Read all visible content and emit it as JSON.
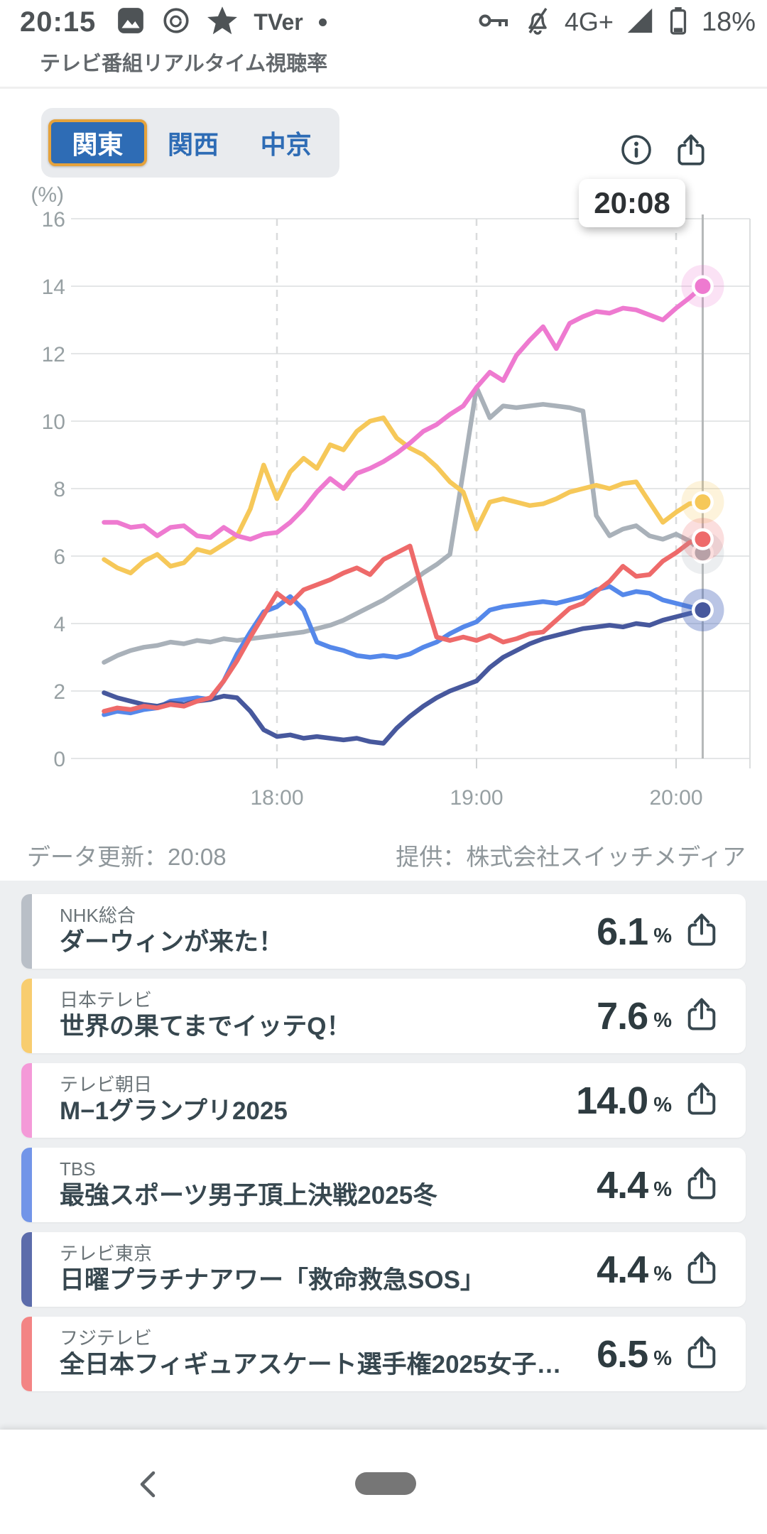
{
  "status_bar": {
    "time": "20:15",
    "tver_label": "TVer",
    "network": "4G+",
    "battery_percent": "18%",
    "left_icon_names": [
      "photo-icon",
      "threads-icon",
      "star-icon",
      "tver-icon",
      "notification-dot-icon"
    ],
    "right_icon_names": [
      "key-icon",
      "bell-off-icon",
      "signal-icon",
      "battery-icon"
    ]
  },
  "header": {
    "app_title": "テレビ番組リアルタイム視聴率"
  },
  "region_tabs": [
    {
      "label": "関東",
      "active": true
    },
    {
      "label": "関西",
      "active": false
    },
    {
      "label": "中京",
      "active": false
    }
  ],
  "tooltip": {
    "time": "20:08"
  },
  "chart_data": {
    "type": "line",
    "title": "",
    "unit_label": "(%)",
    "ylabel": "%",
    "ylim": [
      0,
      16
    ],
    "ytick_step": 2,
    "grid": true,
    "x_ticks": [
      "18:00",
      "19:00",
      "20:00"
    ],
    "x_start": "17:08",
    "x_step_min": 4,
    "cursor_time": "20:08",
    "series": [
      {
        "id": "nhk",
        "name": "NHK総合",
        "color": "#a9b1b9",
        "values": [
          2.85,
          3.05,
          3.2,
          3.3,
          3.35,
          3.45,
          3.4,
          3.5,
          3.45,
          3.55,
          3.5,
          3.55,
          3.6,
          3.65,
          3.7,
          3.75,
          3.85,
          3.95,
          4.1,
          4.3,
          4.5,
          4.7,
          4.95,
          5.2,
          5.5,
          5.75,
          6.05,
          8.5,
          11.0,
          10.1,
          10.45,
          10.4,
          10.45,
          10.5,
          10.45,
          10.4,
          10.3,
          7.2,
          6.6,
          6.8,
          6.9,
          6.6,
          6.5,
          6.65,
          6.45,
          6.1
        ]
      },
      {
        "id": "ntv",
        "name": "日本テレビ",
        "color": "#f6c859",
        "values": [
          5.9,
          5.65,
          5.5,
          5.85,
          6.05,
          5.7,
          5.8,
          6.2,
          6.1,
          6.35,
          6.6,
          7.4,
          8.7,
          7.7,
          8.5,
          8.9,
          8.6,
          9.3,
          9.15,
          9.7,
          10.0,
          10.1,
          9.5,
          9.2,
          9.0,
          8.65,
          8.2,
          7.9,
          6.8,
          7.6,
          7.7,
          7.6,
          7.5,
          7.55,
          7.7,
          7.9,
          8.0,
          8.1,
          8.0,
          8.15,
          8.2,
          7.6,
          7.0,
          7.3,
          7.55,
          7.6
        ]
      },
      {
        "id": "tbs",
        "name": "TBS",
        "color": "#5588ea",
        "values": [
          1.3,
          1.4,
          1.35,
          1.45,
          1.5,
          1.7,
          1.75,
          1.8,
          1.75,
          2.3,
          3.1,
          3.75,
          4.35,
          4.5,
          4.8,
          4.4,
          3.45,
          3.3,
          3.2,
          3.05,
          3.0,
          3.05,
          3.0,
          3.1,
          3.3,
          3.45,
          3.7,
          3.9,
          4.05,
          4.4,
          4.5,
          4.55,
          4.6,
          4.65,
          4.6,
          4.7,
          4.8,
          5.0,
          5.1,
          4.85,
          4.95,
          4.9,
          4.7,
          4.6,
          4.5,
          4.4
        ]
      },
      {
        "id": "tx",
        "name": "テレビ東京",
        "color": "#47589d",
        "values": [
          1.95,
          1.8,
          1.7,
          1.6,
          1.55,
          1.65,
          1.6,
          1.7,
          1.75,
          1.85,
          1.8,
          1.4,
          0.85,
          0.65,
          0.7,
          0.6,
          0.65,
          0.6,
          0.55,
          0.6,
          0.5,
          0.45,
          0.9,
          1.25,
          1.55,
          1.8,
          2.0,
          2.15,
          2.3,
          2.7,
          3.0,
          3.2,
          3.4,
          3.55,
          3.65,
          3.75,
          3.85,
          3.9,
          3.95,
          3.9,
          4.0,
          3.95,
          4.1,
          4.2,
          4.3,
          4.4
        ]
      },
      {
        "id": "cx",
        "name": "フジテレビ",
        "color": "#ee6a6a",
        "values": [
          1.4,
          1.5,
          1.45,
          1.55,
          1.5,
          1.6,
          1.55,
          1.7,
          1.8,
          2.3,
          2.9,
          3.6,
          4.25,
          4.9,
          4.6,
          5.0,
          5.15,
          5.3,
          5.5,
          5.65,
          5.45,
          5.9,
          6.1,
          6.3,
          4.9,
          3.6,
          3.5,
          3.6,
          3.5,
          3.65,
          3.45,
          3.55,
          3.7,
          3.75,
          4.1,
          4.45,
          4.6,
          4.95,
          5.25,
          5.7,
          5.4,
          5.45,
          5.85,
          6.1,
          6.4,
          6.5
        ]
      },
      {
        "id": "ex",
        "name": "テレビ朝日",
        "color": "#ee7ad0",
        "values": [
          7.0,
          7.0,
          6.85,
          6.9,
          6.6,
          6.85,
          6.9,
          6.6,
          6.55,
          6.85,
          6.6,
          6.5,
          6.65,
          6.7,
          7.0,
          7.4,
          7.9,
          8.3,
          8.0,
          8.45,
          8.6,
          8.8,
          9.05,
          9.35,
          9.7,
          9.9,
          10.2,
          10.45,
          11.0,
          11.45,
          11.2,
          11.95,
          12.4,
          12.8,
          12.15,
          12.9,
          13.1,
          13.25,
          13.2,
          13.35,
          13.3,
          13.15,
          13.0,
          13.35,
          13.65,
          14.0
        ]
      }
    ]
  },
  "chart_footer": {
    "updated": "データ更新：20:08",
    "provider": "提供：株式会社スイッチメディア"
  },
  "channels": [
    {
      "station": "NHK総合",
      "program": "ダーウィンが来た！",
      "value": "6.1",
      "unit": "%",
      "color": "#b9bfc7"
    },
    {
      "station": "日本テレビ",
      "program": "世界の果てまでイッテQ！",
      "value": "7.6",
      "unit": "%",
      "color": "#f8cd6f"
    },
    {
      "station": "テレビ朝日",
      "program": "M−1グランプリ2025",
      "value": "14.0",
      "unit": "%",
      "color": "#f49ad8"
    },
    {
      "station": "TBS",
      "program": "最強スポーツ男子頂上決戦2025冬",
      "value": "4.4",
      "unit": "%",
      "color": "#7295e8"
    },
    {
      "station": "テレビ東京",
      "program": "日曜プラチナアワー「救命救急SOS」",
      "value": "4.4",
      "unit": "%",
      "color": "#5c6cab"
    },
    {
      "station": "フジテレビ",
      "program": "全日本フィギュアスケート選手権2025女子…",
      "value": "6.5",
      "unit": "%",
      "color": "#f38484"
    }
  ]
}
